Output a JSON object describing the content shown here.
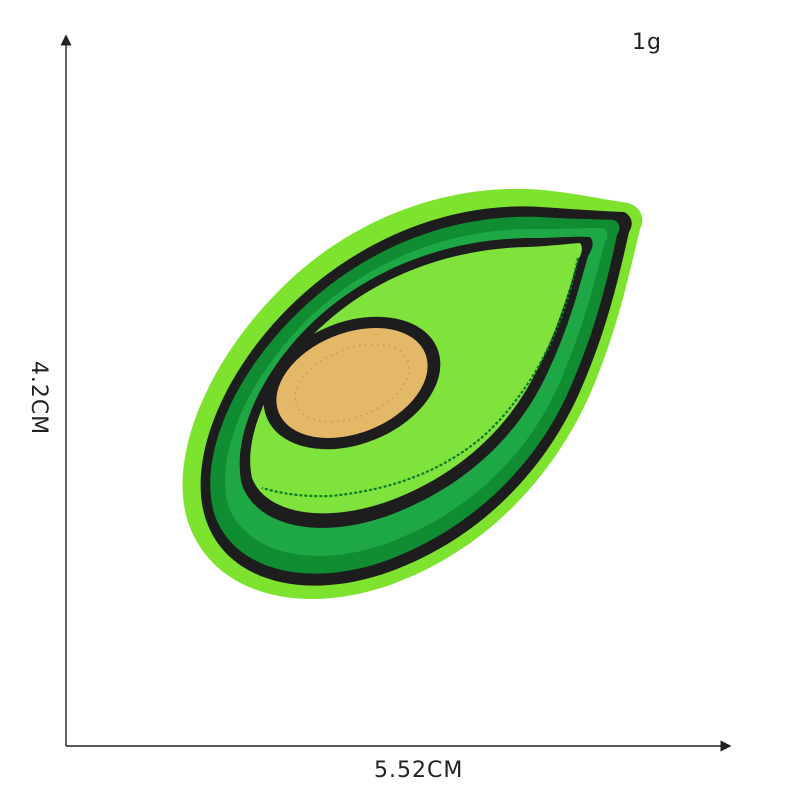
{
  "dimensions": {
    "weight": "1g",
    "width": "5.52CM",
    "height": "4.2CM"
  },
  "colors": {
    "felt": "#7ee32f",
    "felt_edge": "#6fd127",
    "outline": "#1d1d1d",
    "skin_dark": "#108c32",
    "skin_mid": "#1ea845",
    "flesh": "#7fe33c",
    "pit": "#e3b968",
    "axis": "#222222"
  },
  "icons": {
    "patch": "avocado-patch-icon"
  }
}
